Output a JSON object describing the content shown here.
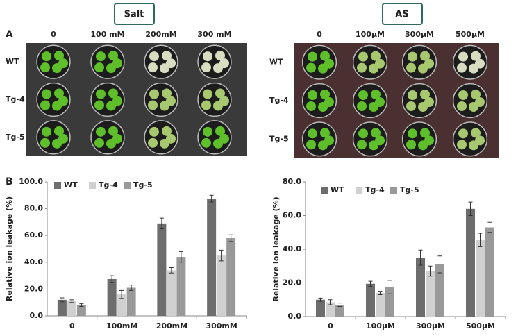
{
  "panel_a": {
    "label": "A",
    "salt": {
      "title": "Salt",
      "columns": [
        "0",
        "100 mM",
        "200mM",
        "300 mM"
      ],
      "rows": [
        "WT",
        "Tg-4",
        "Tg-5"
      ]
    },
    "as": {
      "title": "AS",
      "columns": [
        "0",
        "100µM",
        "300µM",
        "500µM"
      ],
      "rows": [
        "WT",
        "Tg-4",
        "Tg-5"
      ]
    }
  },
  "panel_b_label": "B",
  "chart_data": [
    {
      "type": "bar",
      "y_label": "Relative ion leakage (%)",
      "categories": [
        "0",
        "100mM",
        "200mM",
        "300mM"
      ],
      "series": [
        {
          "name": "WT",
          "color": "#6d6d6d",
          "values": [
            12,
            27.5,
            69,
            87.5
          ],
          "errors": [
            1.5,
            2.5,
            4,
            2.5
          ]
        },
        {
          "name": "Tg-4",
          "color": "#d0d0d0",
          "values": [
            11,
            16,
            34,
            45
          ],
          "errors": [
            1,
            3,
            2,
            4
          ]
        },
        {
          "name": "Tg-5",
          "color": "#999999",
          "values": [
            8,
            21,
            44,
            58
          ],
          "errors": [
            1,
            2,
            4,
            2.5
          ]
        }
      ],
      "ylim": [
        0,
        100
      ],
      "yticks": [
        {
          "value": 0,
          "label": "0.0"
        },
        {
          "value": 20,
          "label": "20.0"
        },
        {
          "value": 40,
          "label": "40.0"
        },
        {
          "value": 60,
          "label": "60.0"
        },
        {
          "value": 80,
          "label": "80.0"
        },
        {
          "value": 100,
          "label": "100.0"
        }
      ],
      "legend": "top-left"
    },
    {
      "type": "bar",
      "y_label": "Relative ion leakage (%)",
      "categories": [
        "0",
        "100µM",
        "300µM",
        "500µM"
      ],
      "series": [
        {
          "name": "WT",
          "color": "#6d6d6d",
          "values": [
            10,
            19.5,
            35,
            64
          ],
          "errors": [
            1,
            1.5,
            4.5,
            4
          ]
        },
        {
          "name": "Tg-4",
          "color": "#d0d0d0",
          "values": [
            8.5,
            14,
            27,
            45.5
          ],
          "errors": [
            1.5,
            1,
            3,
            4
          ]
        },
        {
          "name": "Tg-5",
          "color": "#999999",
          "values": [
            7,
            17.5,
            31,
            53
          ],
          "errors": [
            1,
            4,
            5,
            3
          ]
        }
      ],
      "ylim": [
        0,
        80
      ],
      "yticks": [
        {
          "value": 0,
          "label": "0.0"
        },
        {
          "value": 20,
          "label": "20.0"
        },
        {
          "value": 40,
          "label": "40.0"
        },
        {
          "value": 60,
          "label": "60.0"
        },
        {
          "value": 80,
          "label": "80.0"
        }
      ],
      "legend": "top-left"
    }
  ]
}
